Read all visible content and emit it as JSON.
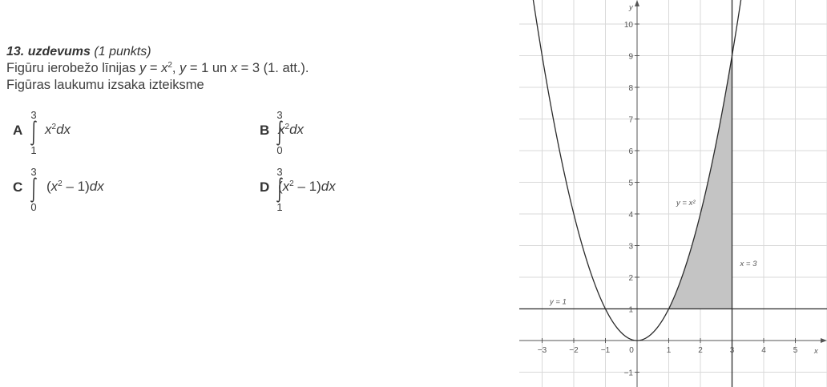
{
  "task": {
    "title": "13. uzdevums",
    "points": "(1 punkts)",
    "line1_pre": "Figūru ierobežo līnijas ",
    "line1_y1": "y",
    "line1_eq1": " = ",
    "line1_x": "x",
    "line1_sq": "2",
    "line1_sep1": ", ",
    "line1_y2": "y",
    "line1_eq2": " = 1 un ",
    "line1_x2": "x",
    "line1_eq3": " = 3 (1. att.).",
    "line2": "Figūras laukumu izsaka izteiksme"
  },
  "options": [
    {
      "letter": "A",
      "upper": "3",
      "lower": "1",
      "pre": "x",
      "pow": "2",
      "post": "dx",
      "paren": false
    },
    {
      "letter": "B",
      "upper": "3",
      "lower": "0",
      "pre": "x",
      "pow": "2",
      "post": "dx",
      "paren": false
    },
    {
      "letter": "C",
      "upper": "3",
      "lower": "0",
      "pre": "(x",
      "pow": "2",
      "post": " – 1)dx",
      "paren": true
    },
    {
      "letter": "D",
      "upper": "3",
      "lower": "1",
      "pre": "(x",
      "pow": "2",
      "post": " – 1)dx",
      "paren": true
    }
  ],
  "figure": {
    "x_axis_label": "x",
    "y_axis_label": "y",
    "x_ticks": [
      "−3",
      "−2",
      "−1",
      "0",
      "1",
      "2",
      "3",
      "4",
      "5"
    ],
    "y_ticks": [
      "−1",
      "1",
      "2",
      "3",
      "4",
      "5",
      "6",
      "7",
      "8",
      "9",
      "10"
    ],
    "curve_label": "y = x²",
    "hline_label": "y = 1",
    "vline_label": "x = 3",
    "colors": {
      "shade": "#c4c4c4",
      "grid": "#d9d9d9",
      "line": "#2b2b2b"
    }
  }
}
